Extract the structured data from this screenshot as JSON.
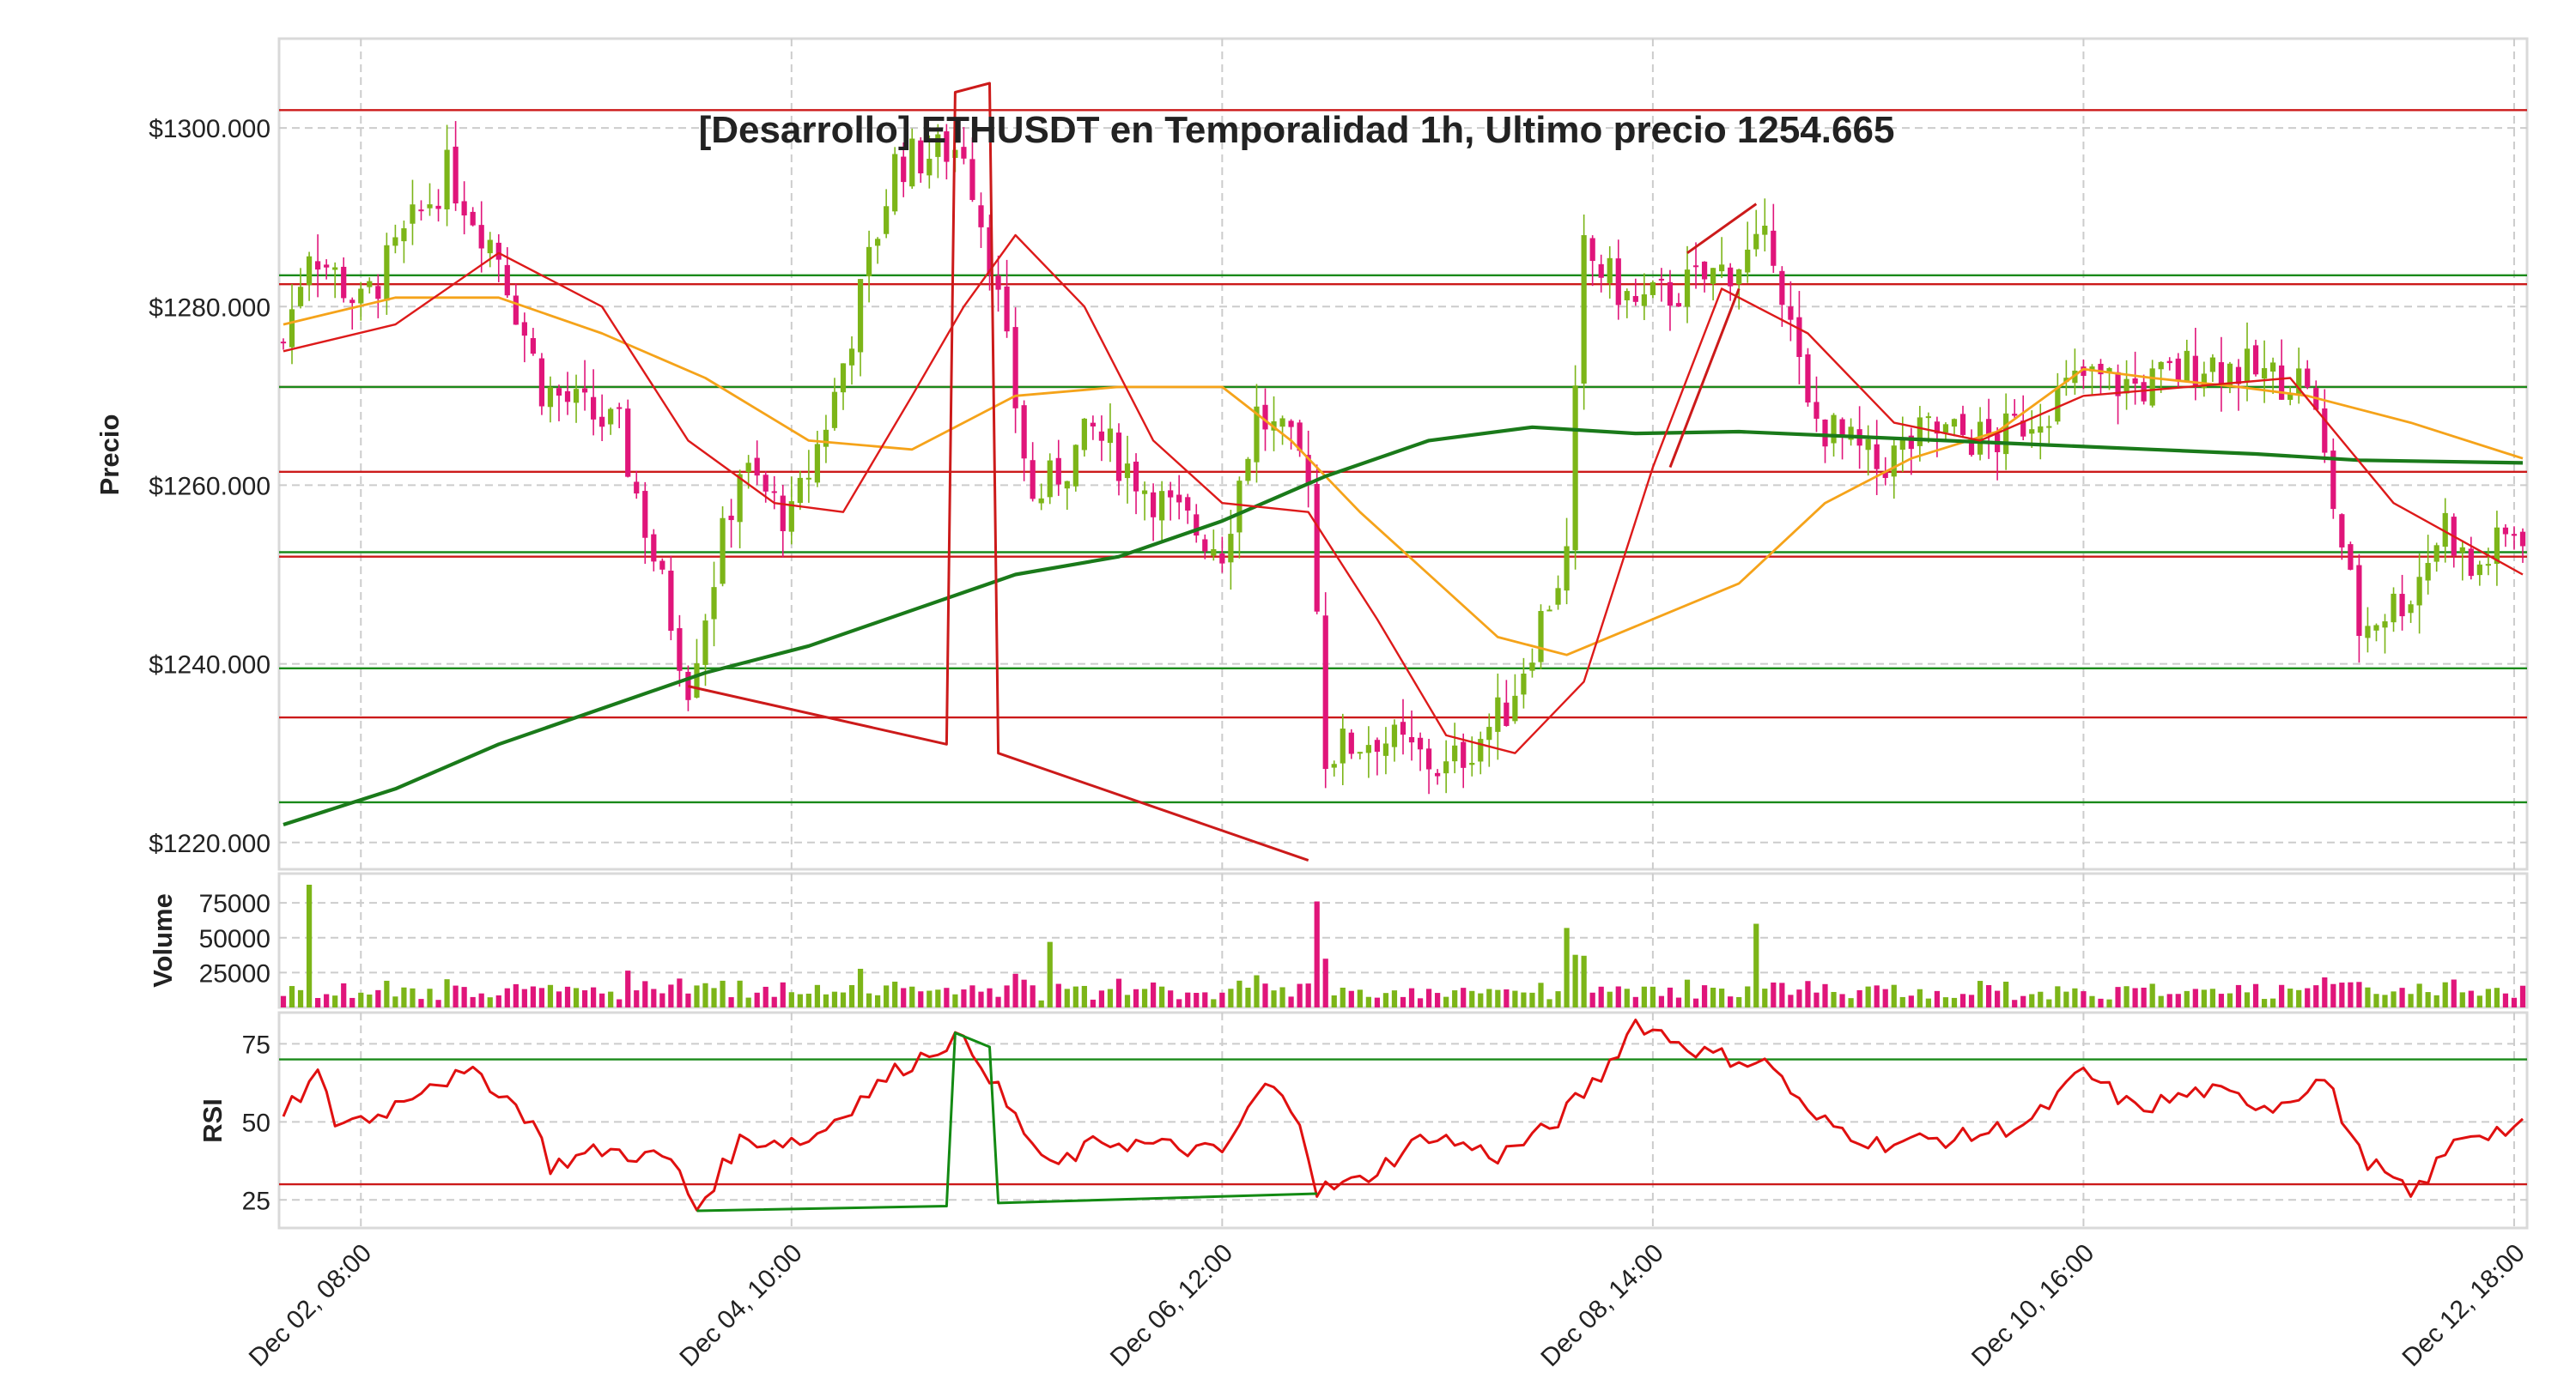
{
  "chart_data": {
    "type": "candlestick",
    "title": "[Desarrollo] ETHUSDT en Temporalidad 1h, Ultimo precio 1254.665",
    "x_axis": {
      "range": [
        "2022-12-01 23:00",
        "2022-12-12 19:00"
      ],
      "tick_labels": [
        "Dec 02, 08:00",
        "Dec 04, 10:00",
        "Dec 06, 12:00",
        "Dec 08, 14:00",
        "Dec 10, 16:00",
        "Dec 12, 18:00"
      ],
      "tick_times": [
        "2022-12-02 08:00",
        "2022-12-04 10:00",
        "2022-12-06 12:00",
        "2022-12-08 14:00",
        "2022-12-10 16:00",
        "2022-12-12 18:00"
      ]
    },
    "price_panel": {
      "ylabel": "Precio",
      "ylim": [
        1217,
        1310
      ],
      "tick_values": [
        1220,
        1240,
        1260,
        1280,
        1300
      ],
      "tick_labels": [
        "$1220.000",
        "$1240.000",
        "$1260.000",
        "$1280.000",
        "$1300.000"
      ],
      "up_color": "#7cb518",
      "down_color": "#e0157a",
      "candles_summary": "Hourly OHLC candles generated procedurally from the close path below",
      "close_path": [
        [
          "2022-12-01 23:00",
          1276
        ],
        [
          "2022-12-02 02:00",
          1287
        ],
        [
          "2022-12-02 08:00",
          1280
        ],
        [
          "2022-12-02 18:00",
          1295
        ],
        [
          "2022-12-03 00:00",
          1286
        ],
        [
          "2022-12-03 05:00",
          1271
        ],
        [
          "2022-12-03 14:00",
          1266
        ],
        [
          "2022-12-03 22:00",
          1238
        ],
        [
          "2022-12-04 04:00",
          1262
        ],
        [
          "2022-12-04 10:00",
          1256
        ],
        [
          "2022-12-04 15:00",
          1270
        ],
        [
          "2022-12-04 22:00",
          1296
        ],
        [
          "2022-12-05 06:00",
          1298
        ],
        [
          "2022-12-05 09:00",
          1286
        ],
        [
          "2022-12-05 14:00",
          1258
        ],
        [
          "2022-12-05 21:00",
          1266
        ],
        [
          "2022-12-06 06:00",
          1257
        ],
        [
          "2022-12-06 12:00",
          1253
        ],
        [
          "2022-12-06 16:00",
          1268
        ],
        [
          "2022-12-06 22:00",
          1262
        ],
        [
          "2022-12-07 00:00",
          1230
        ],
        [
          "2022-12-07 06:00",
          1232
        ],
        [
          "2022-12-07 14:00",
          1228
        ],
        [
          "2022-12-07 21:00",
          1235
        ],
        [
          "2022-12-08 01:00",
          1245
        ],
        [
          "2022-12-08 04:00",
          1252
        ],
        [
          "2022-12-08 06:00",
          1286
        ],
        [
          "2022-12-08 12:00",
          1280
        ],
        [
          "2022-12-08 20:00",
          1283
        ],
        [
          "2022-12-09 04:00",
          1287
        ],
        [
          "2022-12-09 08:00",
          1268
        ],
        [
          "2022-12-09 16:00",
          1262
        ],
        [
          "2022-12-09 22:00",
          1266
        ],
        [
          "2022-12-10 06:00",
          1265
        ],
        [
          "2022-12-10 16:00",
          1272
        ],
        [
          "2022-12-10 23:00",
          1271
        ],
        [
          "2022-12-11 06:00",
          1274
        ],
        [
          "2022-12-11 14:00",
          1272
        ],
        [
          "2022-12-11 18:00",
          1272
        ],
        [
          "2022-12-12 00:00",
          1244
        ],
        [
          "2022-12-12 06:00",
          1248
        ],
        [
          "2022-12-12 10:00",
          1256
        ],
        [
          "2022-12-12 13:00",
          1250
        ],
        [
          "2022-12-12 18:00",
          1255
        ]
      ],
      "support_resistance_red": [
        1302,
        1282.5,
        1271,
        1261.5,
        1252,
        1234
      ],
      "support_resistance_green": [
        1283.5,
        1271,
        1252.5,
        1239.5,
        1224.5
      ],
      "moving_averages": [
        {
          "color": "#f5a31a",
          "points": [
            [
              "2022-12-01 23:00",
              1278
            ],
            [
              "2022-12-02 12:00",
              1281
            ],
            [
              "2022-12-03 00:00",
              1281
            ],
            [
              "2022-12-03 12:00",
              1277
            ],
            [
              "2022-12-04 00:00",
              1272
            ],
            [
              "2022-12-04 12:00",
              1265
            ],
            [
              "2022-12-05 00:00",
              1264
            ],
            [
              "2022-12-05 12:00",
              1270
            ],
            [
              "2022-12-06 00:00",
              1271
            ],
            [
              "2022-12-06 12:00",
              1271
            ],
            [
              "2022-12-06 20:00",
              1265
            ],
            [
              "2022-12-07 04:00",
              1257
            ],
            [
              "2022-12-07 12:00",
              1250
            ],
            [
              "2022-12-07 20:00",
              1243
            ],
            [
              "2022-12-08 04:00",
              1241
            ],
            [
              "2022-12-08 14:00",
              1245
            ],
            [
              "2022-12-09 00:00",
              1249
            ],
            [
              "2022-12-09 10:00",
              1258
            ],
            [
              "2022-12-09 20:00",
              1263
            ],
            [
              "2022-12-10 06:00",
              1266
            ],
            [
              "2022-12-10 16:00",
              1273
            ],
            [
              "2022-12-11 00:00",
              1272
            ],
            [
              "2022-12-11 10:00",
              1271
            ],
            [
              "2022-12-11 18:00",
              1270
            ],
            [
              "2022-12-12 06:00",
              1267
            ],
            [
              "2022-12-12 19:00",
              1263
            ]
          ]
        },
        {
          "color": "#1a7a1a",
          "points": [
            [
              "2022-12-01 23:00",
              1222
            ],
            [
              "2022-12-02 12:00",
              1226
            ],
            [
              "2022-12-03 00:00",
              1231
            ],
            [
              "2022-12-03 12:00",
              1235
            ],
            [
              "2022-12-04 00:00",
              1239
            ],
            [
              "2022-12-04 12:00",
              1242
            ],
            [
              "2022-12-05 00:00",
              1246
            ],
            [
              "2022-12-05 12:00",
              1250
            ],
            [
              "2022-12-06 00:00",
              1252
            ],
            [
              "2022-12-06 12:00",
              1256
            ],
            [
              "2022-12-07 00:00",
              1261
            ],
            [
              "2022-12-07 12:00",
              1265
            ],
            [
              "2022-12-08 00:00",
              1266.5
            ],
            [
              "2022-12-08 12:00",
              1265.8
            ],
            [
              "2022-12-09 00:00",
              1266
            ],
            [
              "2022-12-09 12:00",
              1265.5
            ],
            [
              "2022-12-10 00:00",
              1265
            ],
            [
              "2022-12-10 12:00",
              1264.5
            ],
            [
              "2022-12-11 00:00",
              1264
            ],
            [
              "2022-12-11 12:00",
              1263.5
            ],
            [
              "2022-12-12 00:00",
              1262.8
            ],
            [
              "2022-12-12 19:00",
              1262.5
            ]
          ]
        },
        {
          "color": "#dd1a1a",
          "points": [
            [
              "2022-12-01 23:00",
              1275
            ],
            [
              "2022-12-02 12:00",
              1278
            ],
            [
              "2022-12-03 00:00",
              1286
            ],
            [
              "2022-12-03 12:00",
              1280
            ],
            [
              "2022-12-03 22:00",
              1265
            ],
            [
              "2022-12-04 08:00",
              1258
            ],
            [
              "2022-12-04 16:00",
              1257
            ],
            [
              "2022-12-05 00:00",
              1270
            ],
            [
              "2022-12-05 06:00",
              1280
            ],
            [
              "2022-12-05 12:00",
              1288
            ],
            [
              "2022-12-05 20:00",
              1280
            ],
            [
              "2022-12-06 04:00",
              1265
            ],
            [
              "2022-12-06 12:00",
              1258
            ],
            [
              "2022-12-06 22:00",
              1257
            ],
            [
              "2022-12-07 06:00",
              1245
            ],
            [
              "2022-12-07 14:00",
              1232
            ],
            [
              "2022-12-07 22:00",
              1230
            ],
            [
              "2022-12-08 06:00",
              1238
            ],
            [
              "2022-12-08 14:00",
              1262
            ],
            [
              "2022-12-08 22:00",
              1282
            ],
            [
              "2022-12-09 08:00",
              1277
            ],
            [
              "2022-12-09 18:00",
              1267
            ],
            [
              "2022-12-10 04:00",
              1265
            ],
            [
              "2022-12-10 16:00",
              1270
            ],
            [
              "2022-12-11 04:00",
              1271
            ],
            [
              "2022-12-11 16:00",
              1272
            ],
            [
              "2022-12-12 04:00",
              1258
            ],
            [
              "2022-12-12 19:00",
              1250
            ]
          ]
        }
      ],
      "trend_lines": [
        [
          [
            "2022-12-03 22:00",
            1237.5
          ],
          [
            "2022-12-05 04:00",
            1231
          ],
          [
            "2022-12-05 05:00",
            1304
          ],
          [
            "2022-12-05 09:00",
            1305
          ],
          [
            "2022-12-05 10:00",
            1230
          ],
          [
            "2022-12-06 22:00",
            1218
          ]
        ],
        [
          [
            "2022-12-08 18:00",
            1286
          ],
          [
            "2022-12-09 02:00",
            1291.5
          ]
        ],
        [
          [
            "2022-12-08 16:00",
            1262
          ],
          [
            "2022-12-09 00:00",
            1282
          ]
        ]
      ]
    },
    "volume_panel": {
      "ylabel": "Volume",
      "ylim": [
        0,
        96000
      ],
      "tick_values": [
        25000,
        50000,
        75000
      ],
      "tick_labels": [
        "25000",
        "50000",
        "75000"
      ],
      "notable_bars": [
        {
          "time": "2022-12-02 02:00",
          "value": 88000
        },
        {
          "time": "2022-12-06 23:00",
          "value": 76000
        },
        {
          "time": "2022-12-09 02:00",
          "value": 60000
        },
        {
          "time": "2022-12-08 04:00",
          "value": 57000
        },
        {
          "time": "2022-12-05 16:00",
          "value": 47000
        }
      ]
    },
    "rsi_panel": {
      "ylabel": "RSI",
      "ylim": [
        16,
        85
      ],
      "tick_values": [
        25,
        50,
        75
      ],
      "tick_labels": [
        "25",
        "50",
        "75"
      ],
      "overbought": 70,
      "oversold": 30,
      "rsi_path": [
        [
          "2022-12-01 23:00",
          52
        ],
        [
          "2022-12-02 03:00",
          65
        ],
        [
          "2022-12-02 05:00",
          50
        ],
        [
          "2022-12-02 10:00",
          52
        ],
        [
          "2022-12-02 16:00",
          63
        ],
        [
          "2022-12-02 22:00",
          65
        ],
        [
          "2022-12-03 04:00",
          50
        ],
        [
          "2022-12-03 06:00",
          36
        ],
        [
          "2022-12-03 12:00",
          41
        ],
        [
          "2022-12-03 20:00",
          38
        ],
        [
          "2022-12-03 23:00",
          22
        ],
        [
          "2022-12-04 04:00",
          44
        ],
        [
          "2022-12-04 12:00",
          44
        ],
        [
          "2022-12-04 16:00",
          53
        ],
        [
          "2022-12-04 22:00",
          66
        ],
        [
          "2022-12-05 05:00",
          77
        ],
        [
          "2022-12-05 08:00",
          70
        ],
        [
          "2022-12-05 11:00",
          55
        ],
        [
          "2022-12-05 16:00",
          35
        ],
        [
          "2022-12-05 22:00",
          44
        ],
        [
          "2022-12-06 06:00",
          42
        ],
        [
          "2022-12-06 12:00",
          40
        ],
        [
          "2022-12-06 17:00",
          62
        ],
        [
          "2022-12-06 21:00",
          52
        ],
        [
          "2022-12-06 23:00",
          28
        ],
        [
          "2022-12-07 04:00",
          31
        ],
        [
          "2022-12-07 12:00",
          46
        ],
        [
          "2022-12-07 20:00",
          39
        ],
        [
          "2022-12-08 02:00",
          48
        ],
        [
          "2022-12-08 08:00",
          65
        ],
        [
          "2022-12-08 12:00",
          82
        ],
        [
          "2022-12-08 20:00",
          72
        ],
        [
          "2022-12-09 04:00",
          68
        ],
        [
          "2022-12-09 08:00",
          52
        ],
        [
          "2022-12-09 16:00",
          43
        ],
        [
          "2022-12-10 02:00",
          45
        ],
        [
          "2022-12-10 10:00",
          50
        ],
        [
          "2022-12-10 16:00",
          66
        ],
        [
          "2022-12-10 22:00",
          54
        ],
        [
          "2022-12-11 06:00",
          60
        ],
        [
          "2022-12-11 14:00",
          55
        ],
        [
          "2022-12-11 20:00",
          64
        ],
        [
          "2022-12-12 00:00",
          40
        ],
        [
          "2022-12-12 06:00",
          26
        ],
        [
          "2022-12-12 12:00",
          46
        ],
        [
          "2022-12-12 19:00",
          48
        ]
      ],
      "divergence_line": [
        [
          "2022-12-03 23:00",
          21.5
        ],
        [
          "2022-12-05 04:00",
          23
        ],
        [
          "2022-12-05 05:00",
          78.5
        ],
        [
          "2022-12-05 09:00",
          74
        ],
        [
          "2022-12-05 10:00",
          24
        ],
        [
          "2022-12-06 23:00",
          27
        ]
      ]
    },
    "colors": {
      "up": "#7cb518",
      "down": "#e0157a",
      "level_red": "#cc1a1a",
      "level_green": "#1a8a1a",
      "ma_orange": "#f5a31a",
      "ma_green": "#1a7a1a",
      "ma_red": "#dd1a1a",
      "rsi_line": "#e01010",
      "rsi_divergence": "#138a13"
    }
  }
}
